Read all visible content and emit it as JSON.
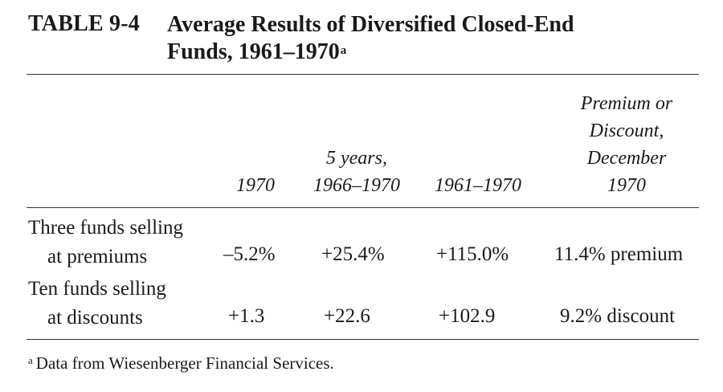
{
  "table": {
    "label": "TABLE 9-4",
    "title_line1": "Average Results of Diversified Closed-End",
    "title_line2": "Funds, 1961–1970",
    "title_note_marker": "a",
    "columns": {
      "c1": [
        "1970"
      ],
      "c2": [
        "5 years,",
        "1966–1970"
      ],
      "c3": [
        "1961–1970"
      ],
      "c4": [
        "Premium or",
        "Discount,",
        "December",
        "1970"
      ]
    },
    "rows": [
      {
        "label_line1": "Three funds selling",
        "label_line2": "at premiums",
        "values": [
          "–5.2%",
          "+25.4%",
          "+115.0%",
          "11.4% premium"
        ]
      },
      {
        "label_line1": "Ten funds selling",
        "label_line2": "at discounts",
        "values": [
          "+1.3",
          "+22.6",
          "+102.9",
          "9.2% discount"
        ]
      }
    ],
    "footnote_marker": "a",
    "footnote_text": "Data from Wiesenberger Financial Services."
  }
}
